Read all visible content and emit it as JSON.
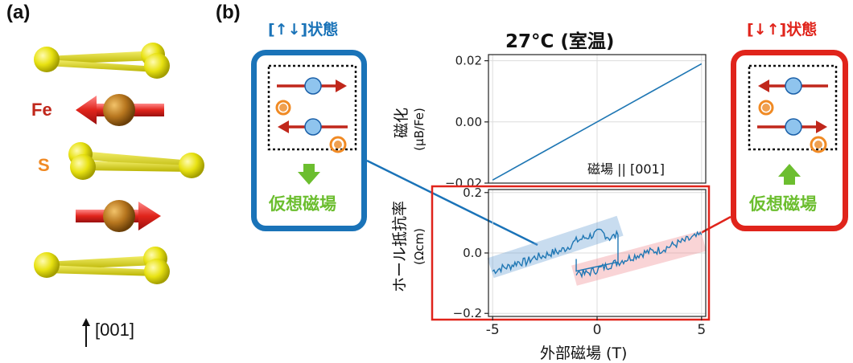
{
  "panel_a": {
    "label": "(a)",
    "fe_label": "Fe",
    "s_label": "S",
    "axis_label": "[001]"
  },
  "panel_b": {
    "label": "(b)",
    "title": "27°C (室温)",
    "left_state": {
      "title": "[↑↓]状態",
      "virtual_field": "仮想磁場",
      "color": "#1a73b8"
    },
    "right_state": {
      "title": "[↓↑]状態",
      "virtual_field": "仮想磁場",
      "color": "#e0241b"
    }
  },
  "colors": {
    "blue": "#1f77b4",
    "red": "#e0241b",
    "green": "#6cbe2f",
    "fe": "#b8771f",
    "s": "#e6e011",
    "orange": "#f08a24"
  },
  "chart_data": [
    {
      "type": "line",
      "title": "27°C (室温)",
      "ylabel": "磁化",
      "ylabel_unit": "(μB/Fe)",
      "annotation": "磁場 || [001]",
      "xlim": [
        -5,
        5
      ],
      "ylim": [
        -0.02,
        0.022
      ],
      "yticks": [
        "0.02",
        "0.00",
        "−0.02"
      ],
      "ytick_values": [
        0.02,
        0.0,
        -0.02
      ],
      "grid": true,
      "series": [
        {
          "x": [
            -5,
            -2.5,
            0,
            2.5,
            5
          ],
          "y": [
            -0.019,
            -0.0095,
            0.0,
            0.0095,
            0.019
          ]
        }
      ]
    },
    {
      "type": "line",
      "ylabel": "ホール抵抗率",
      "ylabel_unit": "(Ωcm)",
      "xlabel": "外部磁場 (T)",
      "xlim": [
        -5.2,
        5.2
      ],
      "ylim": [
        -0.21,
        0.21
      ],
      "xticks": [
        "-5",
        "0",
        "5"
      ],
      "xtick_values": [
        -5,
        0,
        5
      ],
      "yticks": [
        "0.2",
        "0.0",
        "−0.2"
      ],
      "ytick_values": [
        0.2,
        0.0,
        -0.2
      ],
      "grid": true,
      "series": [
        {
          "name": "[↑↓]",
          "x": [
            -5,
            -4.6,
            -4.2,
            -3.8,
            -3.4,
            -3.0,
            -2.6,
            -2.2,
            -1.8,
            -1.4,
            -1.0,
            -0.6,
            -0.2,
            0.2,
            0.6,
            1.0
          ],
          "y": [
            -0.06,
            -0.05,
            -0.045,
            -0.03,
            -0.03,
            -0.015,
            -0.01,
            0.0,
            0.005,
            0.02,
            0.04,
            0.05,
            0.06,
            0.07,
            0.05,
            0.06
          ]
        },
        {
          "name": "[↓↑]",
          "x": [
            -1.0,
            -0.6,
            -0.2,
            0.2,
            0.6,
            1.0,
            1.4,
            1.8,
            2.2,
            2.6,
            3.0,
            3.4,
            3.8,
            4.2,
            4.6,
            5.0
          ],
          "y": [
            -0.06,
            -0.07,
            -0.06,
            -0.05,
            -0.04,
            -0.03,
            -0.02,
            -0.01,
            0.0,
            0.005,
            0.01,
            0.02,
            0.03,
            0.04,
            0.05,
            0.06
          ]
        },
        {
          "name": "switching",
          "x": [
            1.0,
            1.0,
            -1.0,
            -1.0
          ],
          "y": [
            0.06,
            -0.03,
            -0.06,
            -0.02
          ]
        }
      ]
    }
  ]
}
